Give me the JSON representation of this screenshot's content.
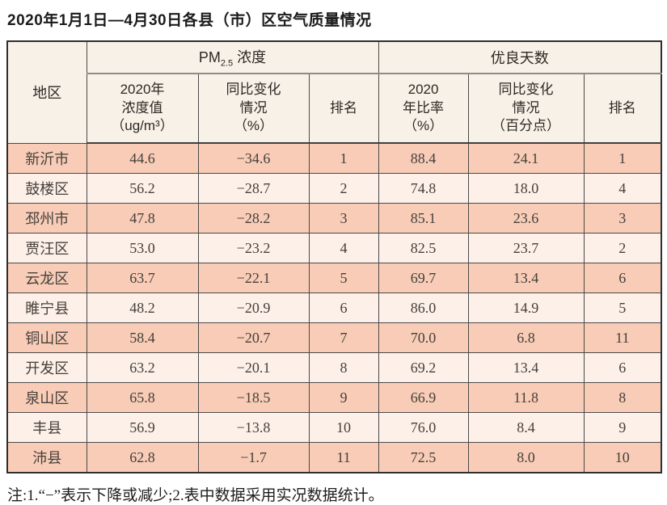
{
  "title": "2020年1月1日—4月30日各县（市）区空气质量情况",
  "note": "注:1.“−”表示下降或减少;2.表中数据采用实况数据统计。",
  "table": {
    "region_header": "地区",
    "pm_group": {
      "main": "PM",
      "sub": "2.5",
      "rest": " 浓度"
    },
    "days_group_label": "优良天数",
    "columns": {
      "pm_value": "2020年\n浓度值\n（ug/m³）",
      "pm_change": "同比变化\n情况\n（%）",
      "pm_rank": "排名",
      "days_rate": "2020\n年比率\n（%）",
      "days_change": "同比变化\n情况\n（百分点）",
      "days_rank": "排名"
    },
    "rows": [
      {
        "region": "新沂市",
        "pm_value": "44.6",
        "pm_change": "−34.6",
        "pm_rank": "1",
        "days_rate": "88.4",
        "days_change": "24.1",
        "days_rank": "1"
      },
      {
        "region": "鼓楼区",
        "pm_value": "56.2",
        "pm_change": "−28.7",
        "pm_rank": "2",
        "days_rate": "74.8",
        "days_change": "18.0",
        "days_rank": "4"
      },
      {
        "region": "邳州市",
        "pm_value": "47.8",
        "pm_change": "−28.2",
        "pm_rank": "3",
        "days_rate": "85.1",
        "days_change": "23.6",
        "days_rank": "3"
      },
      {
        "region": "贾汪区",
        "pm_value": "53.0",
        "pm_change": "−23.2",
        "pm_rank": "4",
        "days_rate": "82.5",
        "days_change": "23.7",
        "days_rank": "2"
      },
      {
        "region": "云龙区",
        "pm_value": "63.7",
        "pm_change": "−22.1",
        "pm_rank": "5",
        "days_rate": "69.7",
        "days_change": "13.4",
        "days_rank": "6"
      },
      {
        "region": "睢宁县",
        "pm_value": "48.2",
        "pm_change": "−20.9",
        "pm_rank": "6",
        "days_rate": "86.0",
        "days_change": "14.9",
        "days_rank": "5"
      },
      {
        "region": "铜山区",
        "pm_value": "58.4",
        "pm_change": "−20.7",
        "pm_rank": "7",
        "days_rate": "70.0",
        "days_change": "6.8",
        "days_rank": "11"
      },
      {
        "region": "开发区",
        "pm_value": "63.2",
        "pm_change": "−20.1",
        "pm_rank": "8",
        "days_rate": "69.2",
        "days_change": "13.4",
        "days_rank": "6"
      },
      {
        "region": "泉山区",
        "pm_value": "65.8",
        "pm_change": "−18.5",
        "pm_rank": "9",
        "days_rate": "66.9",
        "days_change": "11.8",
        "days_rank": "8"
      },
      {
        "region": "丰县",
        "pm_value": "56.9",
        "pm_change": "−13.8",
        "pm_rank": "10",
        "days_rate": "76.0",
        "days_change": "8.4",
        "days_rank": "9"
      },
      {
        "region": "沛县",
        "pm_value": "62.8",
        "pm_change": "−1.7",
        "pm_rank": "11",
        "days_rate": "72.5",
        "days_change": "8.0",
        "days_rank": "10"
      }
    ],
    "colors": {
      "row_dark": "#f8ccb6",
      "row_light": "#fdf0e8",
      "header_bg": "#f8f1e7",
      "border_dark": "#2e2e2e",
      "border_inner": "#4a4a4a",
      "divider_gray": "#8c8c8c"
    }
  }
}
